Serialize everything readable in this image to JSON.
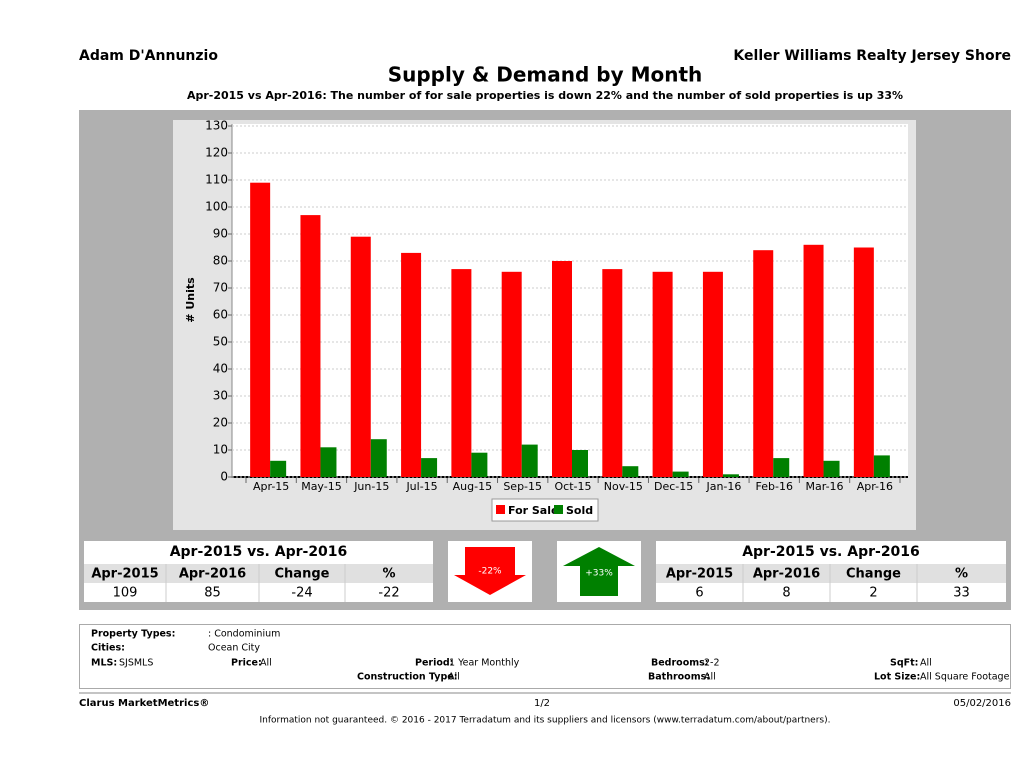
{
  "header": {
    "agent": "Adam D'Annunzio",
    "company": "Keller Williams Realty Jersey Shore"
  },
  "chart_data": {
    "type": "bar",
    "title": "Supply & Demand by Month",
    "subtitle": "Apr-2015 vs Apr-2016: The number of for sale properties is down 22% and the number of sold properties is up 33%",
    "y_label": "# Units",
    "categories": [
      "Apr-15",
      "May-15",
      "Jun-15",
      "Jul-15",
      "Aug-15",
      "Sep-15",
      "Oct-15",
      "Nov-15",
      "Dec-15",
      "Jan-16",
      "Feb-16",
      "Mar-16",
      "Apr-16"
    ],
    "series": [
      {
        "name": "For Sale",
        "color": "#ff0000",
        "values": [
          109,
          97,
          89,
          83,
          77,
          76,
          80,
          77,
          76,
          76,
          84,
          86,
          85
        ]
      },
      {
        "name": "Sold",
        "color": "#008000",
        "values": [
          6,
          11,
          14,
          7,
          9,
          12,
          10,
          4,
          2,
          1,
          7,
          6,
          8
        ]
      }
    ],
    "ylim": [
      0,
      130
    ],
    "yticks": [
      0,
      10,
      20,
      30,
      40,
      50,
      60,
      70,
      80,
      90,
      100,
      110,
      120,
      130
    ],
    "grid": true,
    "legend": "bottom"
  },
  "summary": {
    "for_sale": {
      "title": "Apr-2015 vs. Apr-2016",
      "columns": [
        "Apr-2015",
        "Apr-2016",
        "Change",
        "%"
      ],
      "row": [
        109,
        85,
        -24,
        -22
      ],
      "arrow": "-22%"
    },
    "sold": {
      "title": "Apr-2015 vs. Apr-2016",
      "columns": [
        "Apr-2015",
        "Apr-2016",
        "Change",
        "%"
      ],
      "row": [
        6,
        8,
        2,
        33
      ],
      "arrow": "+33%"
    }
  },
  "filters": [
    {
      "label": "Property Types:",
      "value": ": Condominium"
    },
    {
      "label": "Cities:",
      "value": "Ocean City"
    },
    {
      "label": "MLS:",
      "value": "SJSMLS"
    },
    {
      "label": "Price:",
      "value": "All"
    },
    {
      "label": "Period:",
      "value": "1 Year Monthly"
    },
    {
      "label": "Bedrooms:",
      "value": "2-2"
    },
    {
      "label": "SqFt:",
      "value": "All"
    },
    {
      "label": "Construction Type:",
      "value": "All"
    },
    {
      "label": "Bathrooms:",
      "value": "All"
    },
    {
      "label": "Lot Size:",
      "value": "All Square Footage"
    }
  ],
  "footer": {
    "brand": "Clarus MarketMetrics®",
    "page": "1/2",
    "date": "05/02/2016",
    "disclaimer": "Information not guaranteed. © 2016 - 2017 Terradatum and its suppliers and licensors (www.terradatum.com/about/partners)."
  }
}
